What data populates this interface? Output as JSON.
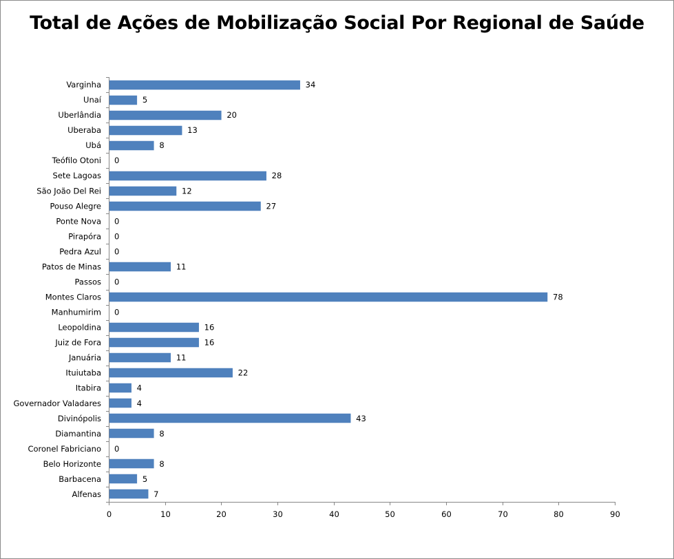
{
  "chart_data": {
    "type": "bar",
    "orientation": "horizontal",
    "title": "Total de Ações de Mobilização Social Por Regional de Saúde",
    "xlabel": "",
    "ylabel": "",
    "xlim": [
      0,
      90
    ],
    "xticks": [
      0,
      10,
      20,
      30,
      40,
      50,
      60,
      70,
      80,
      90
    ],
    "grid": false,
    "legend": "none",
    "bar_color": "#4F81BD",
    "data_labels": true,
    "categories": [
      "Varginha",
      "Unaí",
      "Uberlândia",
      "Uberaba",
      "Ubá",
      "Teófilo Otoni",
      "Sete Lagoas",
      "São João Del Rei",
      "Pouso Alegre",
      "Ponte Nova",
      "Pirapóra",
      "Pedra Azul",
      "Patos de Minas",
      "Passos",
      "Montes Claros",
      "Manhumirim",
      "Leopoldina",
      "Juiz de Fora",
      "Januária",
      "Ituiutaba",
      "Itabira",
      "Governador Valadares",
      "Divinópolis",
      "Diamantina",
      "Coronel Fabriciano",
      "Belo Horizonte",
      "Barbacena",
      "Alfenas"
    ],
    "values": [
      34,
      5,
      20,
      13,
      8,
      0,
      28,
      12,
      27,
      0,
      0,
      0,
      11,
      0,
      78,
      0,
      16,
      16,
      11,
      22,
      4,
      4,
      43,
      8,
      0,
      8,
      5,
      7
    ]
  }
}
